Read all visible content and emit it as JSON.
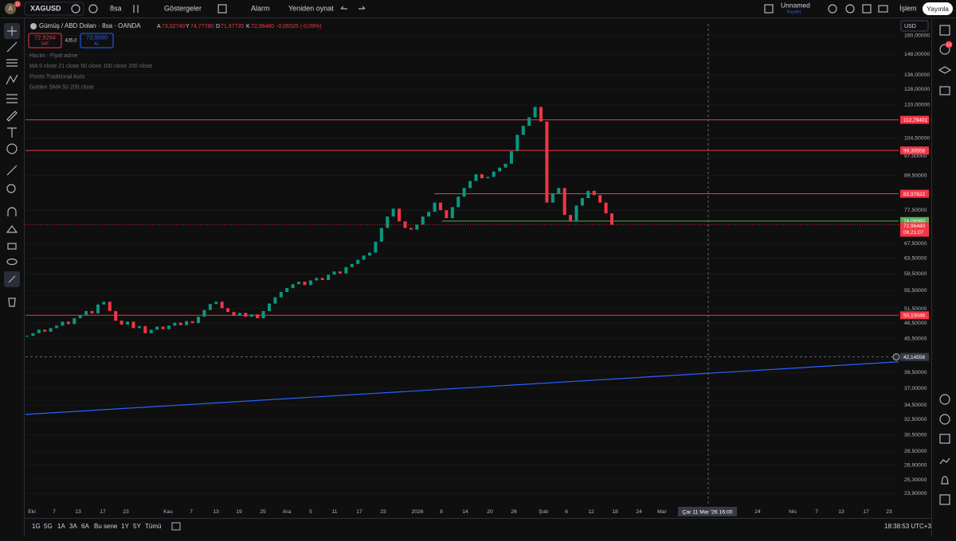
{
  "toolbar": {
    "avatar": "A",
    "avatar_badge": "11",
    "symbol": "XAGUSD",
    "interval": "8sa",
    "indicators": "Göstergeler",
    "alarm": "Alarm",
    "replay": "Yeniden oynat",
    "layout_name": "Unnamed",
    "layout_status": "Kaydet",
    "trade": "İşlem",
    "publish": "Yayınla",
    "alerts_badge": "13",
    "currency": "USD"
  },
  "legend": {
    "title": "Gümüş / ABD Doları · 8sa · OANDA",
    "o_key": "A",
    "o": "73,02740",
    "h_key": "Y",
    "h": "74,77780",
    "l_key": "D",
    "l": "71,97735",
    "c_key": "K",
    "c": "72,96480",
    "change": "-0,06525 (-0,09%)",
    "sell": "72,9264",
    "sell_label": "SAT",
    "spread": "426,0",
    "buy": "73,0090",
    "buy_label": "AL"
  },
  "indicators": [
    "Hacim · Fiyat adme",
    "MA 9 close 21 close 50 close 100 close 200 close",
    "Pivots Traditional Auto",
    "Golden SMA 50 200 close"
  ],
  "chart": {
    "type": "candlestick",
    "log_scale": true,
    "up_color": "#089981",
    "down_color": "#f23645",
    "closes": [
      46,
      46.5,
      47.2,
      46.8,
      47.5,
      48,
      48.8,
      48.3,
      49.5,
      50.2,
      51,
      50.5,
      52.4,
      53,
      51,
      49,
      48.2,
      48.8,
      47.5,
      47.9,
      46.5,
      47.2,
      47.8,
      47.3,
      48,
      48.6,
      48.1,
      48.9,
      48.5,
      49.8,
      51.2,
      52.5,
      53,
      51.6,
      50.8,
      50,
      50.6,
      49.8,
      50.3,
      49.5,
      51,
      52.6,
      54,
      55.2,
      56.1,
      57,
      57.6,
      56.8,
      57.9,
      58.5,
      58,
      59.3,
      60.1,
      59.6,
      61.2,
      62,
      63.1,
      64.2,
      65,
      68,
      72,
      75.5,
      78,
      74,
      72,
      71.5,
      73,
      75.5,
      77,
      80,
      77.5,
      75,
      78.5,
      82,
      85,
      87.5,
      90,
      88.5,
      89,
      91,
      92.5,
      94,
      99,
      106,
      110,
      114,
      119,
      112,
      80,
      83,
      85,
      76,
      74,
      79,
      81.5,
      84,
      82.5,
      80,
      76.5,
      72.9648
    ],
    "ylim": [
      23,
      168
    ],
    "yticks": [
      {
        "value": 160,
        "label": "160,00000"
      },
      {
        "value": 148,
        "label": "148,00000"
      },
      {
        "value": 136,
        "label": "136,00000"
      },
      {
        "value": 128,
        "label": "128,00000"
      },
      {
        "value": 120,
        "label": "120,00000"
      },
      {
        "value": 104.5,
        "label": "104,50000"
      },
      {
        "value": 97,
        "label": "97,00000"
      },
      {
        "value": 89.5,
        "label": "89,50000"
      },
      {
        "value": 77.5,
        "label": "77,50000"
      },
      {
        "value": 67.5,
        "label": "67,50000"
      },
      {
        "value": 63.5,
        "label": "63,50000"
      },
      {
        "value": 59.5,
        "label": "59,50000"
      },
      {
        "value": 55.5,
        "label": "55,50000"
      },
      {
        "value": 51.5,
        "label": "51,50000"
      },
      {
        "value": 48.5,
        "label": "48,50000"
      },
      {
        "value": 45.5,
        "label": "45,50000"
      },
      {
        "value": 39.5,
        "label": "39,50000"
      },
      {
        "value": 37,
        "label": "37,00000"
      },
      {
        "value": 34.5,
        "label": "34,50000"
      },
      {
        "value": 32.5,
        "label": "32,50000"
      },
      {
        "value": 30.5,
        "label": "30,50000"
      },
      {
        "value": 28.5,
        "label": "28,50000"
      },
      {
        "value": 26.9,
        "label": "26,90000"
      },
      {
        "value": 25.3,
        "label": "25,30000"
      },
      {
        "value": 23.9,
        "label": "23,90000"
      }
    ],
    "levels": [
      {
        "value": 112.79401,
        "label": "112,79401",
        "color": "#f23645"
      },
      {
        "value": 99.30558,
        "label": "99,30558",
        "color": "#f23645"
      },
      {
        "value": 82.97622,
        "label": "82,97622",
        "color": "#f23645"
      },
      {
        "value": 50.10046,
        "label": "50,10046",
        "color": "#f23645"
      },
      {
        "value": 74.0899,
        "label": "74,08990",
        "color": "#4caf50"
      }
    ],
    "last_price": {
      "value": 72.9648,
      "label": "72,96480",
      "countdown": "06:21:07",
      "color": "#f23645"
    },
    "trendline": {
      "start": 33.2,
      "end": 41.3,
      "color": "#2962ff"
    },
    "crosshair": {
      "value": 42.14556,
      "label": "42,14556",
      "date": "Çar 11 Mar '26 16:00"
    },
    "xlabels": [
      "Eki",
      "7",
      "13",
      "17",
      "23",
      "Kas",
      "7",
      "13",
      "19",
      "25",
      "Ara",
      "5",
      "11",
      "17",
      "23",
      "2026",
      "8",
      "14",
      "20",
      "26",
      "Şub",
      "6",
      "12",
      "18",
      "24",
      "Mar",
      "24",
      "Nis",
      "7",
      "13",
      "17",
      "23"
    ]
  },
  "bottom": {
    "ranges": [
      "1G",
      "5G",
      "1A",
      "3A",
      "6A",
      "Bu sene",
      "1Y",
      "5Y",
      "Tümü"
    ],
    "clock": "18:38:53 UTC+3"
  }
}
